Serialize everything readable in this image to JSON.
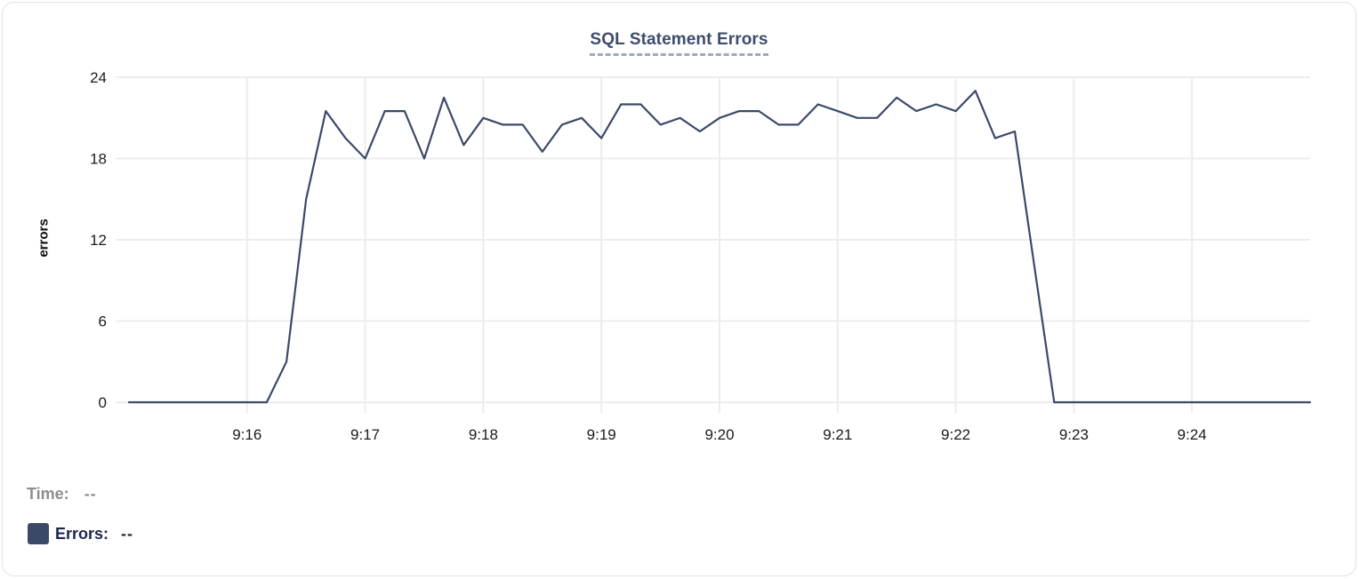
{
  "legend": {
    "time_label": "Time:",
    "time_value": "--",
    "series_label": "Errors:",
    "series_value": "--"
  },
  "chart_data": {
    "type": "line",
    "title": "SQL Statement Errors",
    "title_color": "#3d4c6e",
    "xlabel": "",
    "ylabel": "errors",
    "ylim": [
      0,
      24
    ],
    "yticks": [
      0,
      6,
      12,
      18,
      24
    ],
    "xlim": [
      "9:15:00",
      "9:25:00"
    ],
    "xticks": [
      "9:16",
      "9:17",
      "9:18",
      "9:19",
      "9:20",
      "9:21",
      "9:22",
      "9:23",
      "9:24"
    ],
    "grid": true,
    "legend_position": "bottom-left",
    "series": [
      {
        "name": "Errors",
        "color": "#3b4968",
        "points": [
          [
            "9:15:00",
            0
          ],
          [
            "9:15:10",
            0
          ],
          [
            "9:15:20",
            0
          ],
          [
            "9:15:30",
            0
          ],
          [
            "9:15:40",
            0
          ],
          [
            "9:15:50",
            0
          ],
          [
            "9:16:00",
            0
          ],
          [
            "9:16:10",
            0
          ],
          [
            "9:16:20",
            3
          ],
          [
            "9:16:30",
            15
          ],
          [
            "9:16:40",
            21.5
          ],
          [
            "9:16:50",
            19.5
          ],
          [
            "9:17:00",
            18
          ],
          [
            "9:17:10",
            21.5
          ],
          [
            "9:17:20",
            21.5
          ],
          [
            "9:17:30",
            18
          ],
          [
            "9:17:40",
            22.5
          ],
          [
            "9:17:50",
            19
          ],
          [
            "9:18:00",
            21
          ],
          [
            "9:18:10",
            20.5
          ],
          [
            "9:18:20",
            20.5
          ],
          [
            "9:18:30",
            18.5
          ],
          [
            "9:18:40",
            20.5
          ],
          [
            "9:18:50",
            21
          ],
          [
            "9:19:00",
            19.5
          ],
          [
            "9:19:10",
            22
          ],
          [
            "9:19:20",
            22
          ],
          [
            "9:19:30",
            20.5
          ],
          [
            "9:19:40",
            21
          ],
          [
            "9:19:50",
            20
          ],
          [
            "9:20:00",
            21
          ],
          [
            "9:20:10",
            21.5
          ],
          [
            "9:20:20",
            21.5
          ],
          [
            "9:20:30",
            20.5
          ],
          [
            "9:20:40",
            20.5
          ],
          [
            "9:20:50",
            22
          ],
          [
            "9:21:00",
            21.5
          ],
          [
            "9:21:10",
            21
          ],
          [
            "9:21:20",
            21
          ],
          [
            "9:21:30",
            22.5
          ],
          [
            "9:21:40",
            21.5
          ],
          [
            "9:21:50",
            22
          ],
          [
            "9:22:00",
            21.5
          ],
          [
            "9:22:10",
            23
          ],
          [
            "9:22:20",
            19.5
          ],
          [
            "9:22:30",
            20
          ],
          [
            "9:22:40",
            10
          ],
          [
            "9:22:50",
            0
          ],
          [
            "9:23:00",
            0
          ],
          [
            "9:23:10",
            0
          ],
          [
            "9:23:20",
            0
          ],
          [
            "9:23:30",
            0
          ],
          [
            "9:23:40",
            0
          ],
          [
            "9:23:50",
            0
          ],
          [
            "9:24:00",
            0
          ],
          [
            "9:24:10",
            0
          ],
          [
            "9:24:20",
            0
          ],
          [
            "9:24:30",
            0
          ],
          [
            "9:24:40",
            0
          ],
          [
            "9:24:50",
            0
          ],
          [
            "9:25:00",
            0
          ]
        ]
      }
    ]
  }
}
